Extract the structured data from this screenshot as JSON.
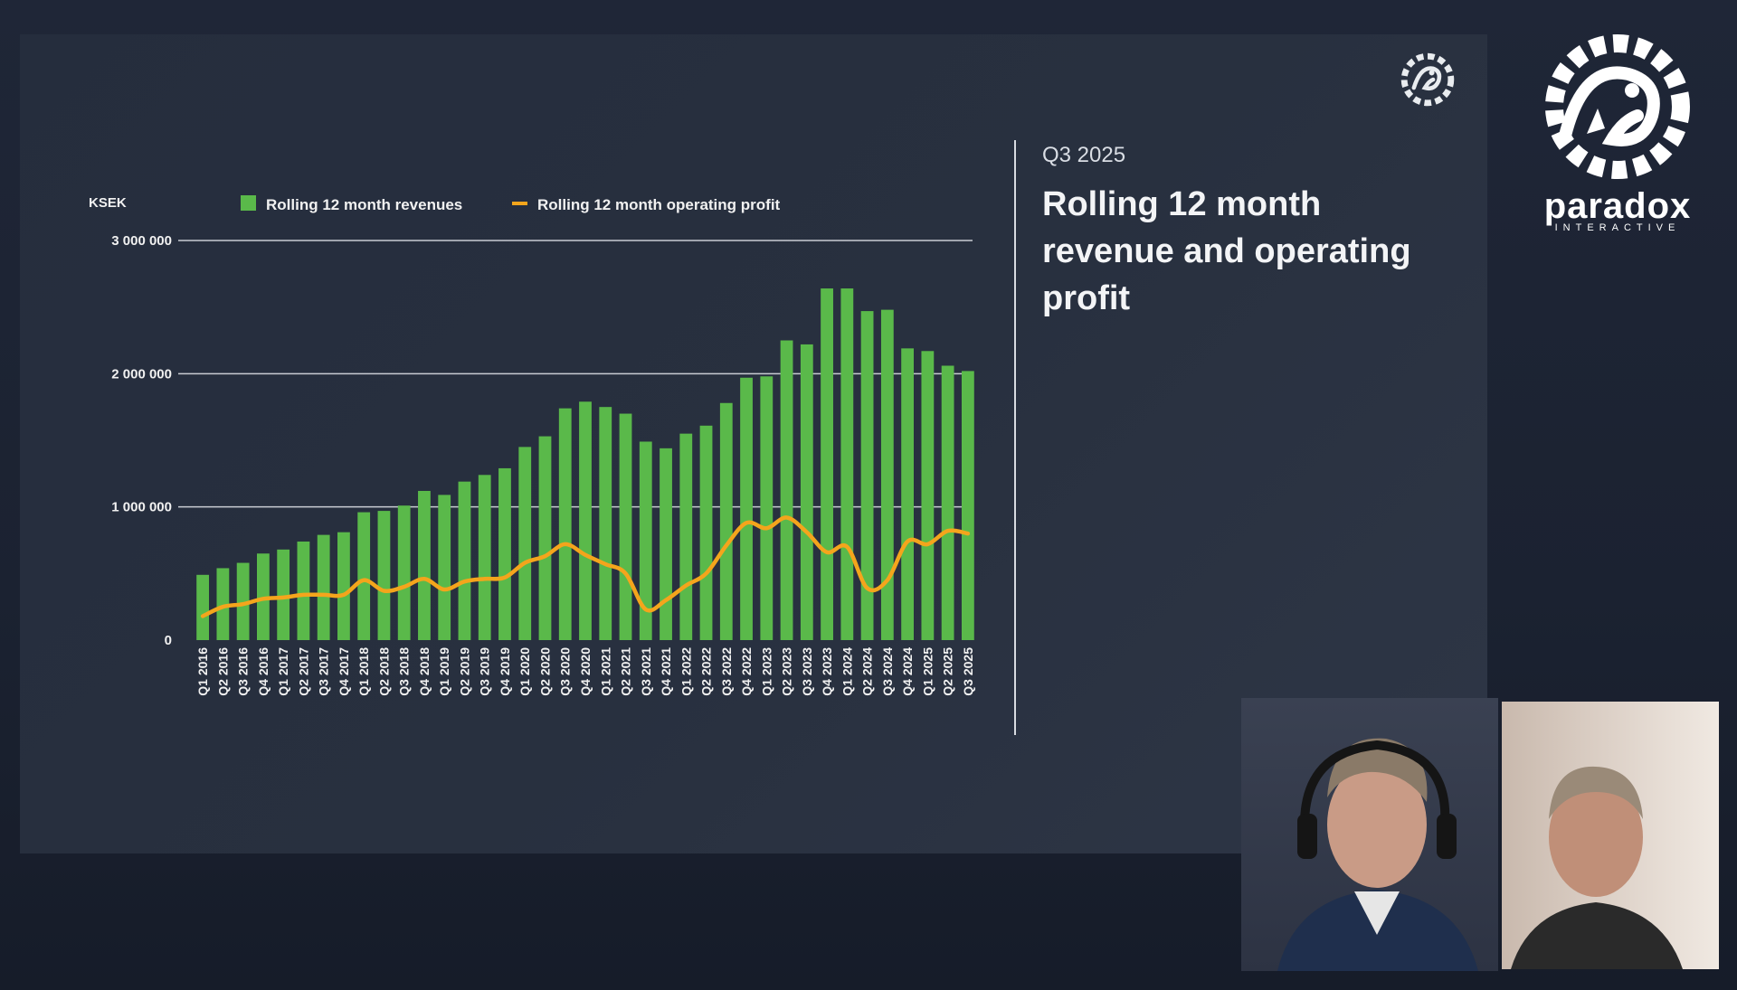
{
  "slide": {
    "period": "Q3 2025",
    "title": "Rolling 12 month revenue and operating profit"
  },
  "brand": {
    "name": "paradox",
    "sub": "INTERACTIVE",
    "logo_icon": "paradox-dragon-logo"
  },
  "colors": {
    "bars": "#5ab94a",
    "line": "#f4a51c",
    "background": "#252d3d"
  },
  "chart_data": {
    "type": "bar",
    "unit_label": "KSEK",
    "ylim": [
      0,
      3000000
    ],
    "yticks": [
      "0",
      "1 000 000",
      "2 000 000",
      "3 000 000"
    ],
    "ytick_values": [
      0,
      1000000,
      2000000,
      3000000
    ],
    "grid": true,
    "legend_position": "top",
    "categories": [
      "Q1 2016",
      "Q2 2016",
      "Q3 2016",
      "Q4 2016",
      "Q1 2017",
      "Q2 2017",
      "Q3 2017",
      "Q4 2017",
      "Q1 2018",
      "Q2 2018",
      "Q3 2018",
      "Q4 2018",
      "Q1 2019",
      "Q2 2019",
      "Q3 2019",
      "Q4 2019",
      "Q1 2020",
      "Q2 2020",
      "Q3 2020",
      "Q4 2020",
      "Q1 2021",
      "Q2 2021",
      "Q3 2021",
      "Q4 2021",
      "Q1 2022",
      "Q2 2022",
      "Q3 2022",
      "Q4 2022",
      "Q1 2023",
      "Q2 2023",
      "Q3 2023",
      "Q4 2023",
      "Q1 2024",
      "Q2 2024",
      "Q3 2024",
      "Q4 2024",
      "Q1 2025",
      "Q2 2025",
      "Q3 2025"
    ],
    "series": [
      {
        "name": "Rolling 12 month revenues",
        "type": "bar",
        "values": [
          490000,
          540000,
          580000,
          650000,
          680000,
          740000,
          790000,
          810000,
          960000,
          970000,
          1010000,
          1120000,
          1090000,
          1190000,
          1240000,
          1290000,
          1450000,
          1530000,
          1740000,
          1790000,
          1750000,
          1700000,
          1490000,
          1440000,
          1550000,
          1610000,
          1780000,
          1970000,
          1980000,
          2250000,
          2220000,
          2640000,
          2640000,
          2470000,
          2480000,
          2190000,
          2170000,
          2060000,
          2020000
        ]
      },
      {
        "name": "Rolling 12 month operating profit",
        "type": "line",
        "values": [
          180000,
          250000,
          270000,
          310000,
          320000,
          340000,
          340000,
          340000,
          450000,
          370000,
          400000,
          460000,
          380000,
          440000,
          460000,
          470000,
          580000,
          630000,
          720000,
          640000,
          570000,
          500000,
          230000,
          300000,
          410000,
          500000,
          710000,
          880000,
          840000,
          920000,
          810000,
          660000,
          700000,
          390000,
          450000,
          740000,
          720000,
          820000,
          800000
        ]
      }
    ]
  }
}
